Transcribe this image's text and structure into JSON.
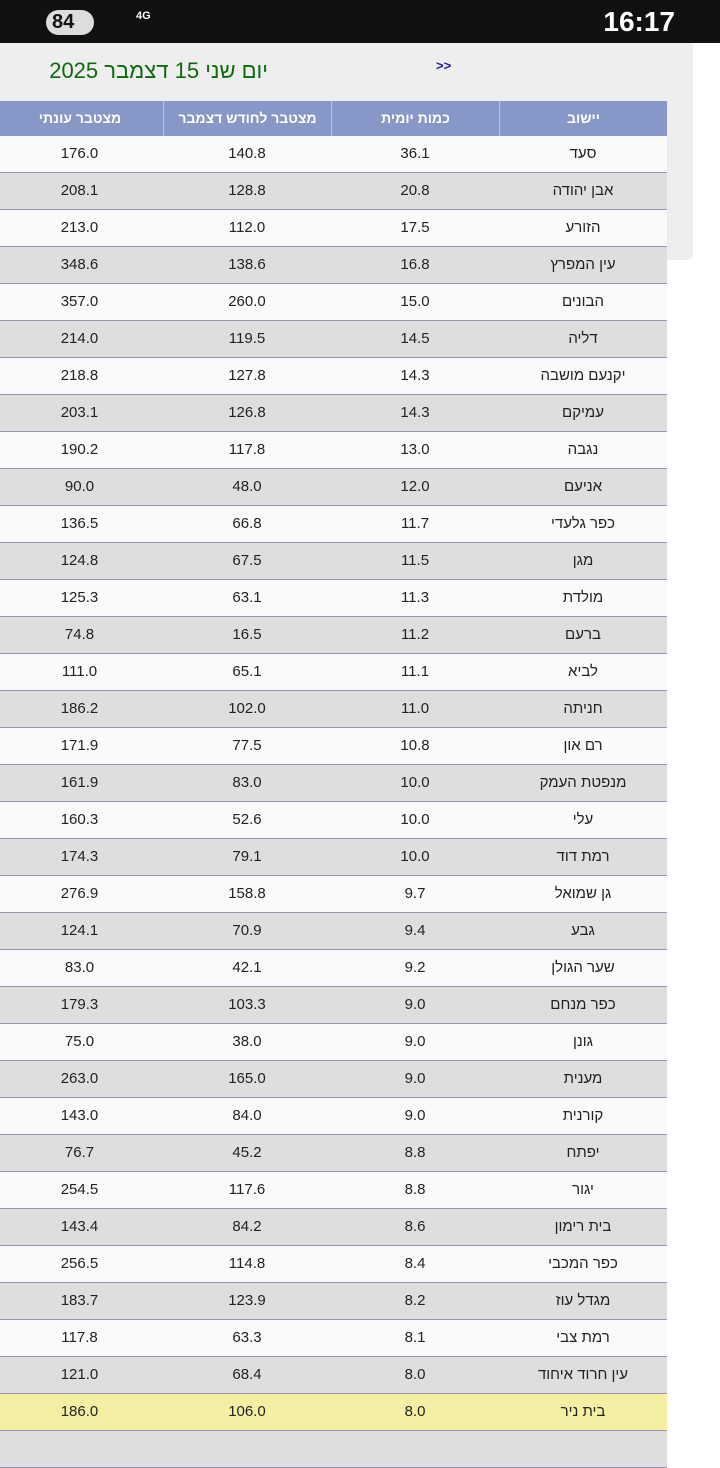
{
  "status_bar": {
    "battery": "84",
    "network": "4G",
    "time": "16:17"
  },
  "header": {
    "title": "יום שני 15 דצמבר 2025",
    "next": ">>"
  },
  "table": {
    "columns": [
      "יישוב",
      "כמות יומית",
      "מצטבר לחודש דצמבר",
      "מצטבר עונתי"
    ],
    "highlight_row": 34,
    "rows": [
      [
        "סעד",
        "36.1",
        "140.8",
        "176.0"
      ],
      [
        "אבן יהודה",
        "20.8",
        "128.8",
        "208.1"
      ],
      [
        "הזורע",
        "17.5",
        "112.0",
        "213.0"
      ],
      [
        "עין המפרץ",
        "16.8",
        "138.6",
        "348.6"
      ],
      [
        "הבונים",
        "15.0",
        "260.0",
        "357.0"
      ],
      [
        "דליה",
        "14.5",
        "119.5",
        "214.0"
      ],
      [
        "יקנעם מושבה",
        "14.3",
        "127.8",
        "218.8"
      ],
      [
        "עמיקם",
        "14.3",
        "126.8",
        "203.1"
      ],
      [
        "נגבה",
        "13.0",
        "117.8",
        "190.2"
      ],
      [
        "אניעם",
        "12.0",
        "48.0",
        "90.0"
      ],
      [
        "כפר גלעדי",
        "11.7",
        "66.8",
        "136.5"
      ],
      [
        "מגן",
        "11.5",
        "67.5",
        "124.8"
      ],
      [
        "מולדת",
        "11.3",
        "63.1",
        "125.3"
      ],
      [
        "ברעם",
        "11.2",
        "16.5",
        "74.8"
      ],
      [
        "לביא",
        "11.1",
        "65.1",
        "111.0"
      ],
      [
        "חניתה",
        "11.0",
        "102.0",
        "186.2"
      ],
      [
        "רם און",
        "10.8",
        "77.5",
        "171.9"
      ],
      [
        "מנפטת העמק",
        "10.0",
        "83.0",
        "161.9"
      ],
      [
        "עלי",
        "10.0",
        "52.6",
        "160.3"
      ],
      [
        "רמת דוד",
        "10.0",
        "79.1",
        "174.3"
      ],
      [
        "גן שמואל",
        "9.7",
        "158.8",
        "276.9"
      ],
      [
        "גבע",
        "9.4",
        "70.9",
        "124.1"
      ],
      [
        "שער הגולן",
        "9.2",
        "42.1",
        "83.0"
      ],
      [
        "כפר מנחם",
        "9.0",
        "103.3",
        "179.3"
      ],
      [
        "גונן",
        "9.0",
        "38.0",
        "75.0"
      ],
      [
        "מענית",
        "9.0",
        "165.0",
        "263.0"
      ],
      [
        "קורנית",
        "9.0",
        "84.0",
        "143.0"
      ],
      [
        "יפתח",
        "8.8",
        "45.2",
        "76.7"
      ],
      [
        "יגור",
        "8.8",
        "117.6",
        "254.5"
      ],
      [
        "בית רימון",
        "8.6",
        "84.2",
        "143.4"
      ],
      [
        "כפר המכבי",
        "8.4",
        "114.8",
        "256.5"
      ],
      [
        "מגדל עוז",
        "8.2",
        "123.9",
        "183.7"
      ],
      [
        "רמת צבי",
        "8.1",
        "63.3",
        "117.8"
      ],
      [
        "עין חרוד איחוד",
        "8.0",
        "68.4",
        "121.0"
      ],
      [
        "בית ניר",
        "8.0",
        "106.0",
        "186.0"
      ]
    ]
  }
}
